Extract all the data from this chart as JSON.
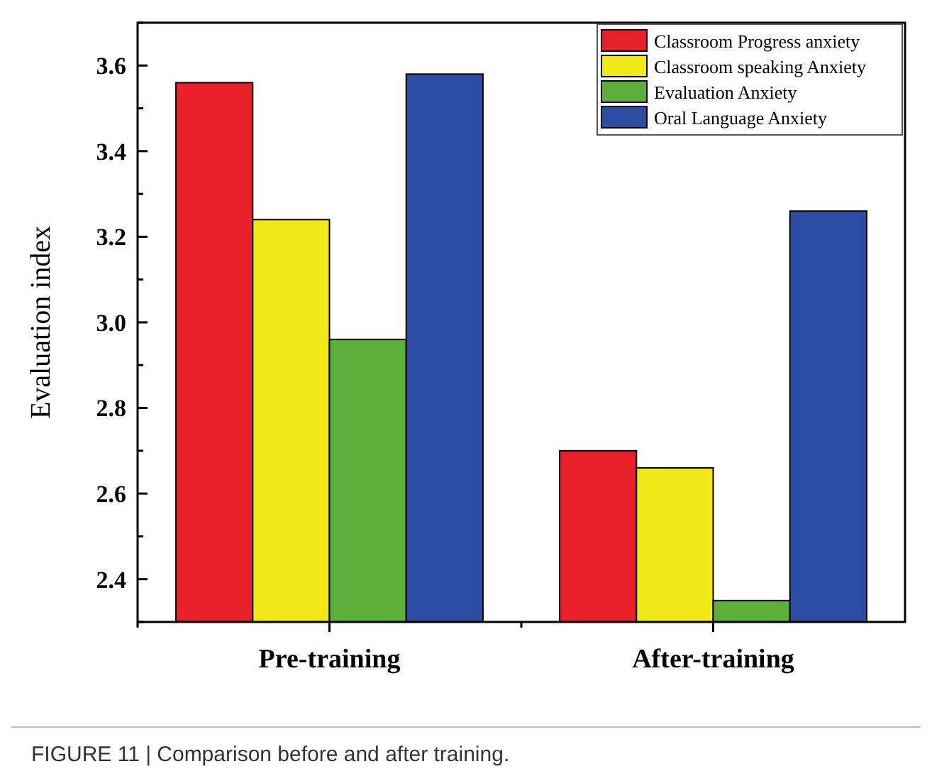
{
  "chart_data": {
    "type": "bar",
    "ylabel": "Evaluation index",
    "categories": [
      "Pre-training",
      "After-training"
    ],
    "series": [
      {
        "name": "Classroom Progress anxiety",
        "color": "#e8202a",
        "values": [
          3.56,
          2.7
        ]
      },
      {
        "name": "Classroom speaking Anxiety",
        "color": "#f0e818",
        "values": [
          3.24,
          2.66
        ]
      },
      {
        "name": "Evaluation Anxiety",
        "color": "#5ab03a",
        "values": [
          2.96,
          2.35
        ]
      },
      {
        "name": "Oral Language Anxiety",
        "color": "#2d4da0",
        "values": [
          3.58,
          3.26
        ]
      }
    ],
    "ylim": [
      2.3,
      3.7
    ],
    "yticks": [
      {
        "value": 2.3,
        "label": null
      },
      2.4,
      {
        "value": 2.5,
        "label": null
      },
      2.6,
      {
        "value": 2.7,
        "label": null
      },
      2.8,
      {
        "value": 2.9,
        "label": null
      },
      {
        "value": 3.0,
        "label": "3.0"
      },
      {
        "value": 3.1,
        "label": null
      },
      3.2,
      {
        "value": 3.3,
        "label": null
      },
      3.4,
      {
        "value": 3.5,
        "label": null
      },
      3.6,
      {
        "value": 3.7,
        "label": null
      }
    ],
    "legend": "top right",
    "grid": false,
    "annotations": [
      "FIGURE 11 | Comparison before and after training."
    ]
  }
}
